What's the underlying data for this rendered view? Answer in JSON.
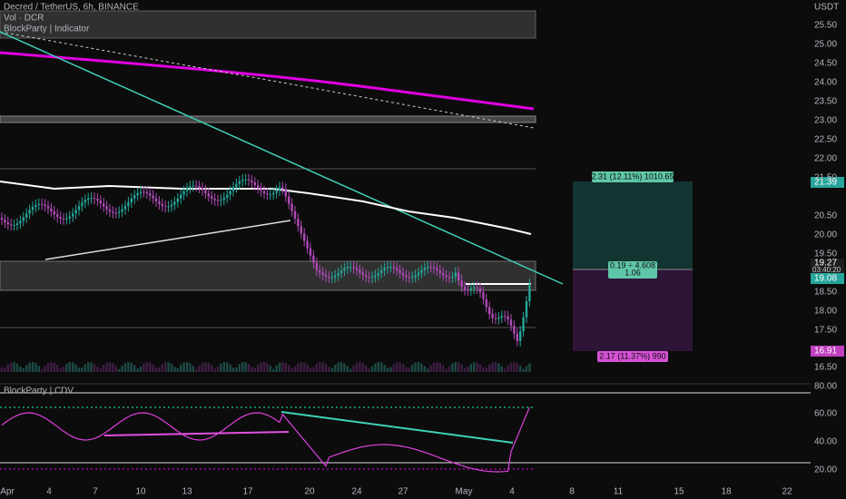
{
  "header": {
    "symbol": "Decred / TetherUS, 6h, BINANCE",
    "volume": "Vol · DCR",
    "indicator": "BlockParty | Indicator"
  },
  "price_axis": {
    "unit": "USDT",
    "labels": [
      "25.50",
      "25.00",
      "24.50",
      "24.00",
      "23.50",
      "23.00",
      "22.50",
      "22.00",
      "21.50",
      "20.50",
      "20.00",
      "19.50",
      "18.50",
      "18.00",
      "17.50",
      "16.50"
    ],
    "badges": {
      "target": "21.39",
      "last": "19.27",
      "countdown": "03:40:20",
      "entry": "19.08",
      "stop": "16.91"
    }
  },
  "lower_pane": {
    "label": "BlockParty | CDV",
    "labels": [
      "80.00",
      "60.00",
      "40.00",
      "20.00"
    ]
  },
  "time_axis": {
    "labels": [
      "Apr",
      "4",
      "7",
      "10",
      "13",
      "17",
      "20",
      "24",
      "27",
      "May",
      "4",
      "8",
      "11",
      "15",
      "18",
      "22"
    ]
  },
  "position": {
    "target": "2.31 (12.11%) 1010.65",
    "ratio": "0.19 ÷ 4.608",
    "qty": "1.06",
    "stop": "2.17 (11.37%) 990"
  }
}
